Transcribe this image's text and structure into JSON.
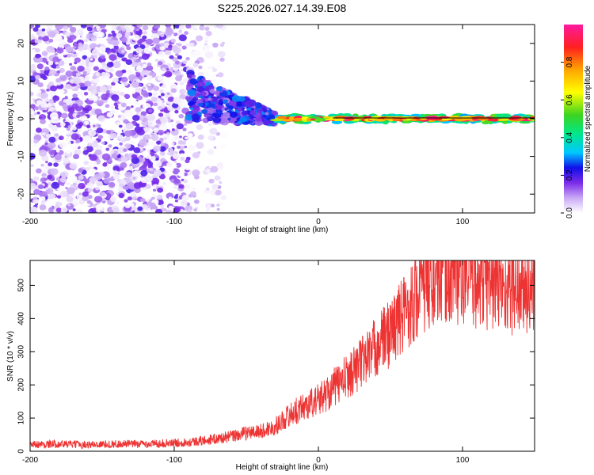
{
  "title": "S225.2026.027.14.39.E08",
  "chart_data": [
    {
      "type": "heatmap",
      "title": "S225.2026.027.14.39.E08",
      "xlabel": "Height of straight line (km)",
      "ylabel": "Frequency (Hz)",
      "xlim": [
        -200,
        150
      ],
      "ylim": [
        -25,
        25
      ],
      "x_ticks": [
        -200,
        -100,
        0,
        100
      ],
      "y_ticks": [
        -20,
        -10,
        0,
        10,
        20
      ],
      "colorbar": {
        "label": "Normalized spectral amplitude",
        "range": [
          0.0,
          1.0
        ],
        "ticks": [
          0.0,
          0.2,
          0.4,
          0.6,
          0.8
        ],
        "tick_labels": [
          "0.0",
          "0.2",
          "0.4",
          "0.6",
          "0.8"
        ],
        "colors": [
          "#ffffff",
          "#c9a9f5",
          "#7b2be8",
          "#1010e8",
          "#00c8ff",
          "#00e88a",
          "#3cd420",
          "#ffff00",
          "#ffa500",
          "#ff2020",
          "#ff1aa0"
        ]
      },
      "regions": [
        {
          "name": "broadband noise",
          "x_range": [
            -200,
            -90
          ],
          "freq_span_hz": [
            -25,
            25
          ],
          "amplitude_range": [
            0.0,
            0.2
          ]
        },
        {
          "name": "transition",
          "x_range": [
            -90,
            -30
          ],
          "freq_span_hz": [
            -8,
            10
          ],
          "amplitude_range": [
            0.1,
            0.3
          ]
        },
        {
          "name": "narrowband signal",
          "x_range": [
            -30,
            150
          ],
          "center_freq_hz": 0,
          "amplitude_range": [
            0.4,
            1.0
          ]
        }
      ]
    },
    {
      "type": "line",
      "xlabel": "Height of straight line (km)",
      "ylabel": "SNR (10 * v/v)",
      "xlim": [
        -200,
        150
      ],
      "ylim": [
        0,
        575
      ],
      "x_ticks": [
        -200,
        -100,
        0,
        100
      ],
      "y_ticks": [
        0,
        100,
        200,
        300,
        400,
        500
      ],
      "series": [
        {
          "name": "SNR",
          "color": "#ee3333",
          "x": [
            -200,
            -180,
            -160,
            -140,
            -120,
            -100,
            -90,
            -80,
            -70,
            -60,
            -50,
            -40,
            -30,
            -20,
            -10,
            0,
            10,
            20,
            30,
            40,
            50,
            60,
            70,
            80,
            90,
            100,
            110,
            120,
            130,
            140,
            150
          ],
          "values": [
            20,
            22,
            20,
            22,
            22,
            25,
            28,
            32,
            38,
            45,
            55,
            60,
            75,
            110,
            135,
            155,
            190,
            225,
            270,
            315,
            360,
            420,
            480,
            520,
            535,
            530,
            520,
            505,
            495,
            485,
            480
          ]
        }
      ]
    }
  ]
}
